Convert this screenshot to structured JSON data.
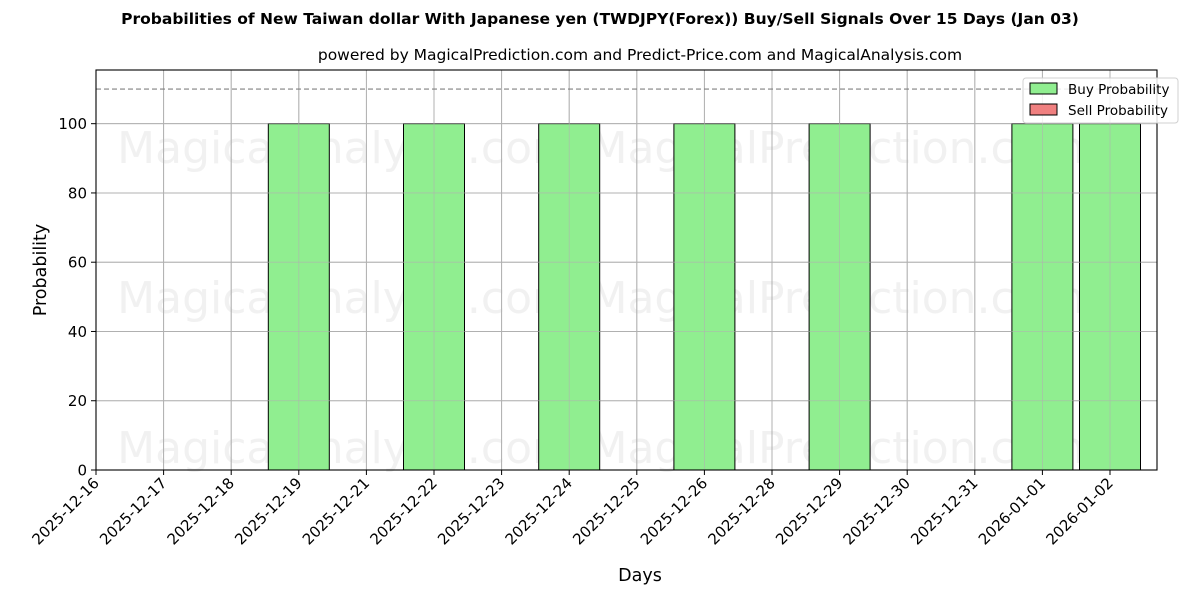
{
  "header": {
    "title": "Probabilities of New Taiwan dollar With Japanese yen (TWDJPY(Forex)) Buy/Sell Signals Over 15 Days (Jan 03)",
    "subtitle": "powered by MagicalPrediction.com and Predict-Price.com and MagicalAnalysis.com"
  },
  "watermarks": [
    "MagicalAnalysis.com",
    "MagicalPrediction.com"
  ],
  "colors": {
    "buy": "#90ee90",
    "sell": "#f08080",
    "grid": "#b0b0b0",
    "reference_line": "#808080"
  },
  "chart_data": {
    "type": "bar",
    "title": "Probabilities of New Taiwan dollar With Japanese yen (TWDJPY(Forex)) Buy/Sell Signals Over 15 Days (Jan 03)",
    "subtitle": "powered by MagicalPrediction.com and Predict-Price.com and MagicalAnalysis.com",
    "xlabel": "Days",
    "ylabel": "Probability",
    "ylim": [
      0,
      115.5
    ],
    "yticks": [
      0,
      20,
      40,
      60,
      80,
      100
    ],
    "grid": true,
    "legend_position": "upper right",
    "reference_line": {
      "y": 110,
      "style": "dashed"
    },
    "categories": [
      "2025-12-16",
      "2025-12-17",
      "2025-12-18",
      "2025-12-19",
      "2025-12-21",
      "2025-12-22",
      "2025-12-23",
      "2025-12-24",
      "2025-12-25",
      "2025-12-26",
      "2025-12-28",
      "2025-12-29",
      "2025-12-30",
      "2025-12-31",
      "2026-01-01",
      "2026-01-02"
    ],
    "series": [
      {
        "name": "Buy Probability",
        "color": "#90ee90",
        "values": [
          0,
          0,
          0,
          100,
          0,
          100,
          0,
          100,
          0,
          100,
          0,
          100,
          0,
          0,
          100,
          100
        ]
      },
      {
        "name": "Sell Probability",
        "color": "#f08080",
        "values": [
          0,
          0,
          0,
          0,
          0,
          0,
          0,
          0,
          0,
          0,
          0,
          0,
          0,
          0,
          0,
          0
        ]
      }
    ]
  }
}
